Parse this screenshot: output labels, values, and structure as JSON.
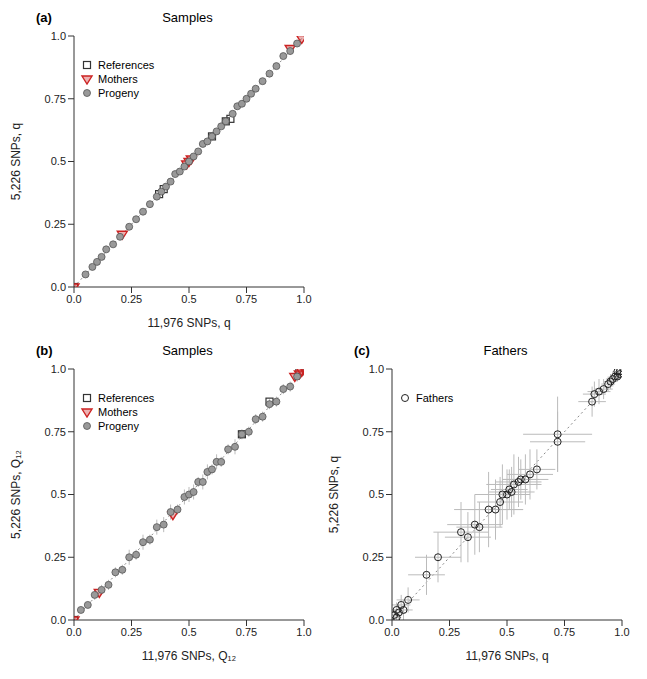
{
  "chart_data": [
    {
      "type": "scatter",
      "label": "(a)",
      "title": "Samples",
      "xlabel": "11,976 SNPs, q",
      "ylabel": "5,226 SNPs, q",
      "xlim": [
        0,
        1
      ],
      "ylim": [
        0,
        1
      ],
      "xticks": [
        {
          "value": 0,
          "label": "0.0"
        },
        0.25,
        0.5,
        0.75,
        {
          "value": 1,
          "label": "1.0"
        }
      ],
      "yticks": [
        {
          "value": 0,
          "label": "0.0"
        },
        0.25,
        0.5,
        0.75,
        {
          "value": 1,
          "label": "1.0"
        }
      ],
      "grid": false,
      "legend": "top left",
      "series": [
        {
          "name": "References",
          "color": "#333333",
          "marker": "square",
          "x": [
            0.0,
            0.37,
            0.39,
            0.6,
            0.66,
            0.68
          ],
          "y": [
            0.0,
            0.37,
            0.39,
            0.6,
            0.66,
            0.67
          ]
        },
        {
          "name": "Mothers",
          "color": "#cc2222",
          "marker": "triangle-down",
          "x": [
            0.0,
            0.21,
            0.49,
            0.5,
            0.51,
            0.94,
            0.99
          ],
          "y": [
            0.0,
            0.21,
            0.49,
            0.5,
            0.51,
            0.95,
            0.99
          ]
        },
        {
          "name": "Progeny",
          "color": "#999999",
          "marker": "circle",
          "x": [
            0.05,
            0.08,
            0.1,
            0.12,
            0.14,
            0.17,
            0.2,
            0.24,
            0.27,
            0.3,
            0.33,
            0.36,
            0.38,
            0.4,
            0.42,
            0.44,
            0.46,
            0.48,
            0.5,
            0.52,
            0.54,
            0.56,
            0.58,
            0.6,
            0.62,
            0.64,
            0.66,
            0.69,
            0.71,
            0.73,
            0.75,
            0.77,
            0.79,
            0.82,
            0.85,
            0.88,
            0.91,
            0.94,
            0.97
          ],
          "y": [
            0.05,
            0.08,
            0.1,
            0.12,
            0.15,
            0.17,
            0.2,
            0.24,
            0.27,
            0.3,
            0.33,
            0.36,
            0.38,
            0.4,
            0.42,
            0.45,
            0.46,
            0.48,
            0.5,
            0.52,
            0.54,
            0.57,
            0.58,
            0.6,
            0.62,
            0.64,
            0.66,
            0.69,
            0.72,
            0.73,
            0.75,
            0.77,
            0.79,
            0.82,
            0.85,
            0.88,
            0.92,
            0.94,
            0.97
          ]
        }
      ]
    },
    {
      "type": "scatter",
      "label": "(b)",
      "title": "Samples",
      "xlabel": "11,976 SNPs, Q₁₂",
      "ylabel": "5,226 SNPs, Q₁₂",
      "xlim": [
        0,
        1
      ],
      "ylim": [
        0,
        1
      ],
      "xticks": [
        {
          "value": 0,
          "label": "0.0"
        },
        0.25,
        0.5,
        0.75,
        {
          "value": 1,
          "label": "1.0"
        }
      ],
      "yticks": [
        {
          "value": 0,
          "label": "0.0"
        },
        0.25,
        0.5,
        0.75,
        {
          "value": 1,
          "label": "1.0"
        }
      ],
      "grid": false,
      "legend": "top left",
      "series": [
        {
          "name": "References",
          "color": "#333333",
          "marker": "square",
          "x": [
            0.0,
            0.73,
            0.85,
            0.98
          ],
          "y": [
            0.0,
            0.74,
            0.87,
            0.99
          ]
        },
        {
          "name": "Mothers",
          "color": "#cc2222",
          "marker": "triangle-down",
          "x": [
            0.0,
            0.11,
            0.43,
            0.96,
            0.98,
            0.99,
            1.0
          ],
          "y": [
            0.0,
            0.11,
            0.42,
            0.97,
            0.98,
            0.99,
            1.0
          ]
        },
        {
          "name": "Progeny",
          "color": "#999999",
          "marker": "circle",
          "x": [
            0.03,
            0.06,
            0.09,
            0.12,
            0.15,
            0.18,
            0.21,
            0.24,
            0.27,
            0.3,
            0.33,
            0.36,
            0.39,
            0.42,
            0.45,
            0.48,
            0.5,
            0.52,
            0.54,
            0.56,
            0.58,
            0.6,
            0.62,
            0.64,
            0.67,
            0.7,
            0.73,
            0.76,
            0.79,
            0.82,
            0.85,
            0.88,
            0.91,
            0.94,
            0.97
          ],
          "y": [
            0.04,
            0.06,
            0.1,
            0.12,
            0.14,
            0.19,
            0.2,
            0.25,
            0.26,
            0.31,
            0.32,
            0.37,
            0.38,
            0.43,
            0.44,
            0.49,
            0.5,
            0.51,
            0.55,
            0.55,
            0.59,
            0.6,
            0.63,
            0.63,
            0.68,
            0.69,
            0.74,
            0.75,
            0.8,
            0.81,
            0.86,
            0.87,
            0.92,
            0.93,
            0.97
          ],
          "y_error": [
            0.01,
            0.01,
            0.02,
            0.02,
            0.02,
            0.02,
            0.02,
            0.03,
            0.02,
            0.03,
            0.02,
            0.03,
            0.03,
            0.03,
            0.02,
            0.03,
            0.03,
            0.03,
            0.02,
            0.03,
            0.03,
            0.02,
            0.03,
            0.02,
            0.02,
            0.03,
            0.02,
            0.02,
            0.02,
            0.02,
            0.02,
            0.02,
            0.02,
            0.02,
            0.02
          ]
        }
      ]
    },
    {
      "type": "scatter",
      "label": "(c)",
      "title": "Fathers",
      "xlabel": "11,976 SNPs, q",
      "ylabel": "5,226 SNPs, q",
      "xlim": [
        0,
        1
      ],
      "ylim": [
        0,
        1
      ],
      "xticks": [
        {
          "value": 0,
          "label": "0.0"
        },
        0.25,
        0.5,
        0.75,
        {
          "value": 1,
          "label": "1.0"
        }
      ],
      "yticks": [
        {
          "value": 0,
          "label": "0.0"
        },
        0.25,
        0.5,
        0.75,
        {
          "value": 1,
          "label": "1.0"
        }
      ],
      "grid": false,
      "legend": "top left",
      "series": [
        {
          "name": "Fathers",
          "color": "#222222",
          "marker": "circle-open",
          "x": [
            0.01,
            0.02,
            0.02,
            0.03,
            0.04,
            0.05,
            0.07,
            0.15,
            0.2,
            0.3,
            0.33,
            0.36,
            0.38,
            0.42,
            0.45,
            0.47,
            0.48,
            0.5,
            0.51,
            0.52,
            0.53,
            0.55,
            0.56,
            0.58,
            0.6,
            0.63,
            0.72,
            0.72,
            0.87,
            0.88,
            0.9,
            0.92,
            0.94,
            0.95,
            0.96,
            0.97,
            0.98,
            0.98,
            0.99,
            0.99
          ],
          "y": [
            0.02,
            0.01,
            0.04,
            0.03,
            0.06,
            0.04,
            0.08,
            0.18,
            0.25,
            0.35,
            0.33,
            0.38,
            0.37,
            0.44,
            0.44,
            0.47,
            0.5,
            0.5,
            0.52,
            0.51,
            0.54,
            0.55,
            0.56,
            0.56,
            0.58,
            0.6,
            0.74,
            0.71,
            0.87,
            0.9,
            0.91,
            0.92,
            0.94,
            0.95,
            0.96,
            0.97,
            0.97,
            0.99,
            0.98,
            0.99
          ],
          "x_error": [
            0.01,
            0.02,
            0.02,
            0.03,
            0.04,
            0.04,
            0.05,
            0.08,
            0.1,
            0.12,
            0.1,
            0.12,
            0.1,
            0.15,
            0.12,
            0.1,
            0.12,
            0.1,
            0.08,
            0.1,
            0.12,
            0.1,
            0.08,
            0.1,
            0.1,
            0.08,
            0.15,
            0.12,
            0.06,
            0.05,
            0.05,
            0.04,
            0.03,
            0.03,
            0.03,
            0.02,
            0.02,
            0.02,
            0.01,
            0.01
          ],
          "y_error": [
            0.02,
            0.01,
            0.03,
            0.03,
            0.04,
            0.04,
            0.05,
            0.08,
            0.1,
            0.12,
            0.1,
            0.12,
            0.1,
            0.15,
            0.12,
            0.1,
            0.12,
            0.1,
            0.08,
            0.1,
            0.12,
            0.1,
            0.08,
            0.1,
            0.1,
            0.08,
            0.15,
            0.12,
            0.06,
            0.05,
            0.05,
            0.04,
            0.03,
            0.03,
            0.03,
            0.02,
            0.02,
            0.01,
            0.02,
            0.01
          ]
        }
      ]
    }
  ]
}
